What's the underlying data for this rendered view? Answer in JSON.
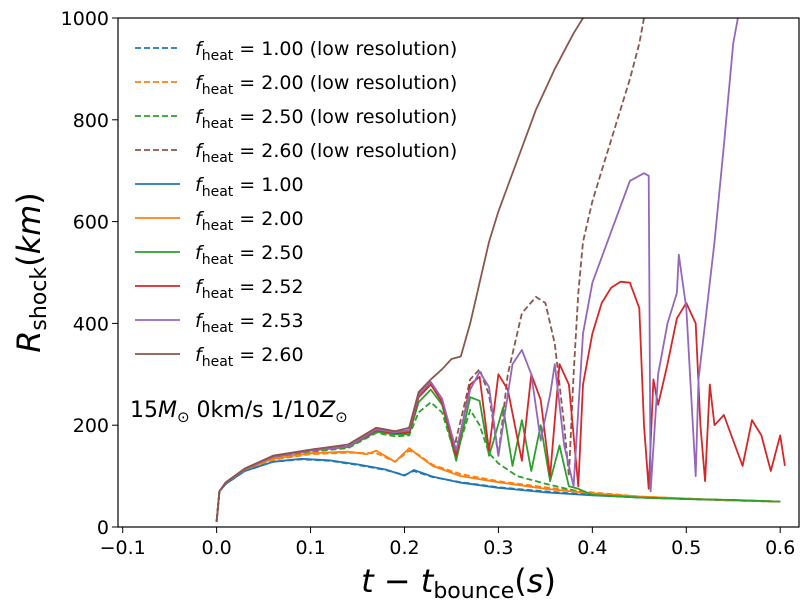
{
  "chart_data": {
    "type": "line",
    "title": "",
    "xlabel": "t − t_bounce(s)",
    "ylabel": "R_shock(km)",
    "xlim": [
      -0.105,
      0.62
    ],
    "ylim": [
      0,
      1000
    ],
    "xticks": [
      -0.1,
      0.0,
      0.1,
      0.2,
      0.3,
      0.4,
      0.5,
      0.6
    ],
    "xtick_labels": [
      "−0.1",
      "0.0",
      "0.1",
      "0.2",
      "0.3",
      "0.4",
      "0.5",
      "0.6"
    ],
    "yticks": [
      0,
      200,
      400,
      600,
      800,
      1000
    ],
    "ytick_labels": [
      "0",
      "200",
      "400",
      "600",
      "800",
      "1000"
    ],
    "grid": false,
    "legend_position": "upper-left",
    "annotation": "15M⊙ 0km/s 1/10Z⊙",
    "series": [
      {
        "name": "f_heat = 1.00 (low resolution)",
        "color": "#1f77b4",
        "dash": true,
        "x": [
          0,
          0.003,
          0.01,
          0.03,
          0.06,
          0.09,
          0.12,
          0.15,
          0.18,
          0.2,
          0.21,
          0.23,
          0.26,
          0.3,
          0.35,
          0.4,
          0.45,
          0.5,
          0.55,
          0.6
        ],
        "y": [
          10,
          70,
          85,
          110,
          128,
          133,
          130,
          122,
          112,
          102,
          110,
          98,
          88,
          78,
          70,
          63,
          58,
          55,
          52,
          50
        ]
      },
      {
        "name": "f_heat = 2.00 (low resolution)",
        "color": "#ff7f0e",
        "dash": true,
        "x": [
          0,
          0.003,
          0.01,
          0.03,
          0.06,
          0.1,
          0.14,
          0.17,
          0.19,
          0.205,
          0.215,
          0.23,
          0.26,
          0.3,
          0.35,
          0.4,
          0.45,
          0.5,
          0.55,
          0.6
        ],
        "y": [
          10,
          70,
          87,
          112,
          132,
          143,
          146,
          145,
          128,
          150,
          142,
          122,
          104,
          90,
          78,
          68,
          60,
          56,
          52,
          50
        ]
      },
      {
        "name": "f_heat = 2.50 (low resolution)",
        "color": "#2ca02c",
        "dash": true,
        "x": [
          0,
          0.003,
          0.01,
          0.03,
          0.06,
          0.1,
          0.14,
          0.17,
          0.19,
          0.205,
          0.215,
          0.228,
          0.24,
          0.25,
          0.26,
          0.27,
          0.28,
          0.29,
          0.3,
          0.32,
          0.35,
          0.38,
          0.4,
          0.45,
          0.5,
          0.55,
          0.6
        ],
        "y": [
          10,
          70,
          87,
          112,
          135,
          148,
          155,
          185,
          178,
          180,
          225,
          245,
          225,
          165,
          170,
          230,
          200,
          145,
          125,
          100,
          85,
          72,
          63,
          58,
          55,
          52,
          50
        ]
      },
      {
        "name": "f_heat = 2.60 (low resolution)",
        "color": "#8c564b",
        "dash": true,
        "x": [
          0,
          0.003,
          0.01,
          0.03,
          0.06,
          0.1,
          0.14,
          0.17,
          0.19,
          0.205,
          0.215,
          0.228,
          0.24,
          0.252,
          0.26,
          0.27,
          0.28,
          0.29,
          0.3,
          0.31,
          0.325,
          0.34,
          0.35,
          0.36,
          0.37,
          0.375,
          0.38,
          0.385,
          0.39,
          0.4,
          0.41,
          0.42,
          0.43,
          0.44,
          0.45,
          0.455
        ],
        "y": [
          10,
          70,
          88,
          114,
          138,
          152,
          160,
          190,
          185,
          195,
          262,
          282,
          248,
          150,
          210,
          290,
          310,
          260,
          140,
          300,
          420,
          452,
          440,
          360,
          200,
          100,
          300,
          460,
          560,
          640,
          700,
          760,
          820,
          880,
          950,
          1000
        ]
      },
      {
        "name": "f_heat = 1.00",
        "color": "#1f77b4",
        "dash": false,
        "x": [
          0,
          0.003,
          0.01,
          0.03,
          0.06,
          0.09,
          0.12,
          0.15,
          0.18,
          0.2,
          0.21,
          0.23,
          0.26,
          0.3,
          0.35,
          0.4,
          0.45,
          0.5,
          0.55,
          0.6
        ],
        "y": [
          10,
          70,
          85,
          110,
          128,
          134,
          131,
          123,
          113,
          101,
          112,
          99,
          87,
          77,
          68,
          62,
          58,
          55,
          53,
          50
        ]
      },
      {
        "name": "f_heat = 2.00",
        "color": "#ff7f0e",
        "dash": false,
        "x": [
          0,
          0.003,
          0.01,
          0.03,
          0.06,
          0.1,
          0.14,
          0.16,
          0.17,
          0.19,
          0.205,
          0.215,
          0.23,
          0.26,
          0.3,
          0.35,
          0.4,
          0.45,
          0.5,
          0.55,
          0.6
        ],
        "y": [
          10,
          70,
          87,
          113,
          134,
          145,
          148,
          143,
          150,
          128,
          155,
          140,
          120,
          100,
          88,
          75,
          66,
          60,
          56,
          52,
          50
        ]
      },
      {
        "name": "f_heat = 2.50",
        "color": "#2ca02c",
        "dash": false,
        "x": [
          0,
          0.003,
          0.01,
          0.03,
          0.06,
          0.1,
          0.14,
          0.17,
          0.19,
          0.205,
          0.215,
          0.228,
          0.24,
          0.255,
          0.27,
          0.28,
          0.29,
          0.295,
          0.305,
          0.315,
          0.325,
          0.335,
          0.345,
          0.355,
          0.365,
          0.375,
          0.385,
          0.4,
          0.45,
          0.5,
          0.55,
          0.6
        ],
        "y": [
          10,
          70,
          88,
          114,
          138,
          150,
          157,
          187,
          182,
          182,
          245,
          270,
          240,
          130,
          255,
          248,
          140,
          170,
          235,
          120,
          210,
          110,
          200,
          90,
          160,
          80,
          75,
          63,
          58,
          55,
          53,
          50
        ]
      },
      {
        "name": "f_heat = 2.52",
        "color": "#d62728",
        "dash": false,
        "x": [
          0,
          0.003,
          0.01,
          0.03,
          0.06,
          0.1,
          0.14,
          0.17,
          0.19,
          0.205,
          0.215,
          0.228,
          0.24,
          0.255,
          0.27,
          0.28,
          0.29,
          0.3,
          0.31,
          0.325,
          0.335,
          0.345,
          0.355,
          0.365,
          0.375,
          0.385,
          0.39,
          0.4,
          0.41,
          0.42,
          0.43,
          0.44,
          0.45,
          0.455,
          0.46,
          0.465,
          0.47,
          0.48,
          0.49,
          0.5,
          0.51,
          0.515,
          0.52,
          0.525,
          0.53,
          0.54,
          0.55,
          0.56,
          0.57,
          0.58,
          0.59,
          0.6,
          0.605
        ],
        "y": [
          10,
          70,
          88,
          114,
          138,
          150,
          158,
          190,
          184,
          186,
          255,
          280,
          245,
          140,
          280,
          295,
          150,
          300,
          270,
          130,
          300,
          250,
          100,
          320,
          280,
          80,
          280,
          380,
          440,
          470,
          482,
          480,
          430,
          200,
          75,
          290,
          240,
          320,
          410,
          440,
          400,
          200,
          90,
          280,
          200,
          220,
          170,
          120,
          210,
          180,
          110,
          180,
          120
        ]
      },
      {
        "name": "f_heat = 2.53",
        "color": "#9467bd",
        "dash": false,
        "x": [
          0,
          0.003,
          0.01,
          0.03,
          0.06,
          0.1,
          0.14,
          0.17,
          0.19,
          0.205,
          0.215,
          0.228,
          0.24,
          0.255,
          0.27,
          0.28,
          0.29,
          0.3,
          0.315,
          0.325,
          0.335,
          0.345,
          0.355,
          0.36,
          0.37,
          0.38,
          0.39,
          0.4,
          0.42,
          0.44,
          0.455,
          0.46,
          0.462,
          0.47,
          0.48,
          0.49,
          0.492,
          0.5,
          0.51,
          0.513,
          0.52,
          0.53,
          0.54,
          0.55,
          0.555
        ],
        "y": [
          10,
          70,
          88,
          114,
          138,
          150,
          158,
          192,
          186,
          190,
          260,
          285,
          252,
          150,
          270,
          305,
          275,
          140,
          320,
          348,
          300,
          170,
          260,
          320,
          160,
          80,
          380,
          480,
          580,
          680,
          695,
          690,
          70,
          300,
          400,
          460,
          535,
          430,
          100,
          290,
          400,
          560,
          750,
          950,
          1000
        ]
      },
      {
        "name": "f_heat = 2.60",
        "color": "#8c564b",
        "dash": false,
        "x": [
          0,
          0.003,
          0.01,
          0.03,
          0.06,
          0.1,
          0.14,
          0.17,
          0.19,
          0.205,
          0.215,
          0.228,
          0.24,
          0.25,
          0.26,
          0.27,
          0.28,
          0.29,
          0.3,
          0.31,
          0.32,
          0.33,
          0.34,
          0.35,
          0.36,
          0.37,
          0.38,
          0.39
        ],
        "y": [
          10,
          70,
          88,
          115,
          140,
          152,
          162,
          195,
          188,
          195,
          265,
          290,
          310,
          330,
          335,
          400,
          480,
          560,
          620,
          670,
          720,
          770,
          820,
          860,
          900,
          935,
          970,
          1000
        ]
      }
    ]
  }
}
